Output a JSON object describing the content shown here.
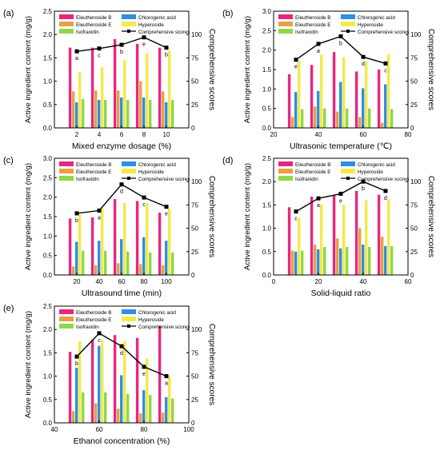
{
  "colors": {
    "eleutheroside_b": "#e8267f",
    "eleutheroside_e": "#e8a040",
    "chlorogenic_acid": "#2f8fe0",
    "hyperoside": "#f2ea4a",
    "isofraxidin": "#8fd84a",
    "score_line": "#000000"
  },
  "legend_labels": [
    "Eleutheroside B",
    "Chlorogenic acid",
    "Eleutheroside E",
    "Hyperoside",
    "Isofraxidin",
    "Comprehensive scores"
  ],
  "chart_data": [
    {
      "panel_label": "(a)",
      "type": "bar",
      "xlabel": "Mixed enzyme dosage (%)",
      "ylabel": "Active ingredient content (mg/g)",
      "y2label": "Comprehensive scores",
      "x": [
        2,
        4,
        6,
        8,
        10
      ],
      "xlim": [
        0,
        12
      ],
      "xticks": [
        2,
        4,
        6,
        8,
        10
      ],
      "ylim": [
        0,
        2.5
      ],
      "yticks": [
        "0.0",
        "0.5",
        "1.0",
        "1.5",
        "2.0",
        "2.5"
      ],
      "y2lim": [
        0,
        125
      ],
      "y2ticks": [
        0,
        25,
        50,
        75,
        100
      ],
      "legend": "top",
      "series": [
        {
          "name": "Eleutheroside B",
          "values": [
            1.72,
            1.72,
            1.9,
            1.8,
            1.72
          ]
        },
        {
          "name": "Eleutheroside E",
          "values": [
            0.78,
            0.8,
            0.8,
            1.0,
            0.78
          ]
        },
        {
          "name": "Chlorogenic acid",
          "values": [
            0.55,
            0.6,
            0.65,
            0.65,
            0.55
          ]
        },
        {
          "name": "Hyperoside",
          "values": [
            1.2,
            1.3,
            1.45,
            1.6,
            1.65
          ]
        },
        {
          "name": "Isofraxidin",
          "values": [
            0.62,
            0.6,
            0.6,
            0.6,
            0.6
          ]
        }
      ],
      "scores": {
        "name": "Comprehensive scores",
        "values": [
          82,
          85,
          89,
          97,
          86
        ]
      },
      "score_labels": [
        "a",
        "c",
        "b",
        "e",
        "b"
      ]
    },
    {
      "panel_label": "(b)",
      "type": "bar",
      "xlabel": "Ultrasonic temperature (℃)",
      "ylabel": "Active ingredient content (mg/g)",
      "y2label": "Comprehensive scores",
      "x": [
        30,
        40,
        50,
        60,
        70
      ],
      "xlim": [
        20,
        80
      ],
      "xticks": [
        20,
        40,
        60,
        80
      ],
      "ylim": [
        0,
        3.0
      ],
      "yticks": [
        "0.0",
        "0.5",
        "1.0",
        "1.5",
        "2.0",
        "2.5",
        "3.0"
      ],
      "y2lim": [
        0,
        125
      ],
      "y2ticks": [
        0,
        25,
        50,
        75,
        100
      ],
      "legend": "top",
      "series": [
        {
          "name": "Eleutheroside B",
          "values": [
            1.38,
            1.62,
            1.95,
            1.45,
            1.5
          ]
        },
        {
          "name": "Eleutheroside E",
          "values": [
            0.28,
            0.55,
            0.42,
            0.28,
            0.13
          ]
        },
        {
          "name": "Chlorogenic acid",
          "values": [
            0.92,
            0.95,
            1.18,
            1.02,
            1.12
          ]
        },
        {
          "name": "Hyperoside",
          "values": [
            1.72,
            1.88,
            1.82,
            1.7,
            1.9
          ]
        },
        {
          "name": "Isofraxidin",
          "values": [
            0.48,
            0.5,
            0.5,
            0.5,
            0.48
          ]
        }
      ],
      "scores": {
        "name": "Comprehensive scores",
        "values": [
          73,
          90,
          98,
          76,
          69
        ]
      },
      "score_labels": [
        "e",
        "a",
        "b",
        "d",
        "c"
      ]
    },
    {
      "panel_label": "(c)",
      "type": "bar",
      "xlabel": "Ultrasound time (min)",
      "ylabel": "Active ingredient content (mg/g)",
      "y2label": "Comprehensive scores",
      "x": [
        20,
        40,
        60,
        80,
        100
      ],
      "xlim": [
        0,
        120
      ],
      "xticks": [
        20,
        40,
        60,
        80,
        100
      ],
      "ylim": [
        0,
        3.0
      ],
      "yticks": [
        "0.0",
        "0.5",
        "1.0",
        "1.5",
        "2.0",
        "2.5",
        "3.0"
      ],
      "y2lim": [
        0,
        125
      ],
      "y2ticks": [
        0,
        25,
        50,
        75,
        100
      ],
      "legend": "top",
      "series": [
        {
          "name": "Eleutheroside B",
          "values": [
            1.45,
            1.48,
            1.95,
            1.9,
            1.6
          ]
        },
        {
          "name": "Eleutheroside E",
          "values": [
            0.22,
            0.25,
            0.3,
            0.28,
            0.25
          ]
        },
        {
          "name": "Chlorogenic acid",
          "values": [
            0.85,
            0.88,
            0.92,
            0.97,
            0.88
          ]
        },
        {
          "name": "Hyperoside",
          "values": [
            1.55,
            1.72,
            1.85,
            1.85,
            1.7
          ]
        },
        {
          "name": "Isofraxidin",
          "values": [
            0.62,
            0.62,
            0.6,
            0.58,
            0.58
          ]
        }
      ],
      "scores": {
        "name": "Comprehensive scores",
        "values": [
          66,
          69,
          97,
          83,
          73
        ]
      },
      "score_labels": [
        "b",
        "a",
        "d",
        "c",
        "e"
      ]
    },
    {
      "panel_label": "(d)",
      "type": "bar",
      "xlabel": "Solid-liquid ratio",
      "ylabel": "Active ingredient content (mg/g)",
      "y2label": "Comprehensive scores",
      "x": [
        10,
        20,
        30,
        40,
        50
      ],
      "xlim": [
        0,
        60
      ],
      "xticks": [
        0,
        20,
        40,
        60
      ],
      "ylim": [
        0,
        2.5
      ],
      "yticks": [
        "0.0",
        "0.5",
        "1.0",
        "1.5",
        "2.0",
        "2.5"
      ],
      "y2lim": [
        0,
        125
      ],
      "y2ticks": [
        0,
        25,
        50,
        75,
        100
      ],
      "legend": "top",
      "series": [
        {
          "name": "Eleutheroside B",
          "values": [
            1.45,
            1.68,
            1.7,
            1.8,
            1.72
          ]
        },
        {
          "name": "Eleutheroside E",
          "values": [
            0.52,
            0.65,
            0.78,
            1.0,
            0.82
          ]
        },
        {
          "name": "Chlorogenic acid",
          "values": [
            0.5,
            0.55,
            0.57,
            0.65,
            0.62
          ]
        },
        {
          "name": "Hyperoside",
          "values": [
            1.22,
            1.52,
            1.5,
            1.6,
            1.62
          ]
        },
        {
          "name": "Isofraxidin",
          "values": [
            0.52,
            0.6,
            0.6,
            0.6,
            0.62
          ]
        }
      ],
      "scores": {
        "name": "Comprehensive scores",
        "values": [
          68,
          82,
          87,
          100,
          90
        ]
      },
      "score_labels": [
        "c",
        "a",
        "e",
        "b",
        "d"
      ]
    },
    {
      "panel_label": "(e)",
      "type": "bar",
      "xlabel": "Ethanol concentration (%)",
      "ylabel": "Active ingredient content (mg/g)",
      "y2label": "Comprehensive scores",
      "x": [
        50,
        60,
        70,
        80,
        90
      ],
      "xlim": [
        40,
        100
      ],
      "xticks": [
        40,
        60,
        80,
        100
      ],
      "ylim": [
        0,
        2.5
      ],
      "yticks": [
        "0.0",
        "0.5",
        "1.0",
        "1.5",
        "2.0",
        "2.5"
      ],
      "y2lim": [
        0,
        125
      ],
      "y2ticks": [
        0,
        25,
        50,
        75,
        100
      ],
      "legend": "top",
      "series": [
        {
          "name": "Eleutheroside B",
          "values": [
            1.52,
            1.78,
            1.88,
            1.82,
            2.08
          ]
        },
        {
          "name": "Eleutheroside E",
          "values": [
            0.25,
            0.42,
            0.3,
            0.2,
            0.22
          ]
        },
        {
          "name": "Chlorogenic acid",
          "values": [
            1.18,
            1.65,
            1.02,
            0.7,
            0.55
          ]
        },
        {
          "name": "Hyperoside",
          "values": [
            1.75,
            1.78,
            1.75,
            1.38,
            1.0
          ]
        },
        {
          "name": "Isofraxidin",
          "values": [
            0.65,
            0.65,
            0.62,
            0.6,
            0.52
          ]
        }
      ],
      "scores": {
        "name": "Comprehensive scores",
        "values": [
          71,
          96,
          82,
          60,
          50
        ]
      },
      "score_labels": [
        "b",
        "c",
        "d",
        "e",
        "a"
      ]
    }
  ]
}
